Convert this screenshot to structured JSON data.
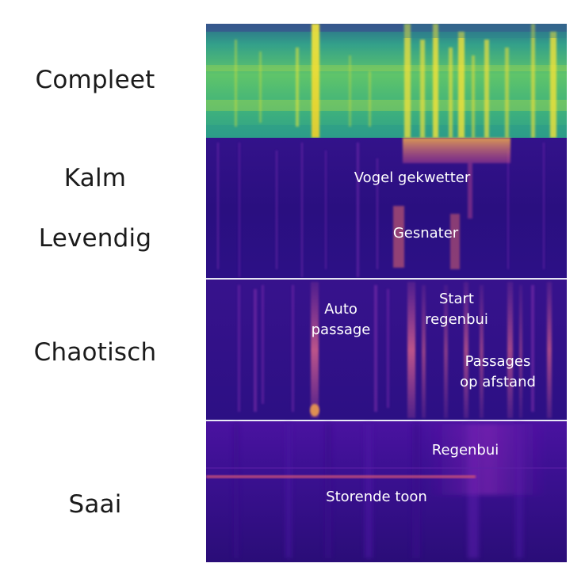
{
  "labels": {
    "compleet": "Compleet",
    "kalm": "Kalm",
    "levendig": "Levendig",
    "chaotisch": "Chaotisch",
    "saai": "Saai"
  },
  "annotations": {
    "vogel": "Vogel gekwetter",
    "gesnater": "Gesnater",
    "auto_line1": "Auto",
    "auto_line2": "passage",
    "start_line1": "Start",
    "start_line2": "regenbui",
    "passages_line1": "Passages",
    "passages_line2": "op afstand",
    "regenbui": "Regenbui",
    "storende": "Storende toon"
  },
  "colors": {
    "viridis_bg": "#2f9e86",
    "viridis_bright": "#e6e21e",
    "plasma_bg": "#2c1084",
    "plasma_bright": "#f5a53a",
    "divider": "#d9d9ee"
  }
}
